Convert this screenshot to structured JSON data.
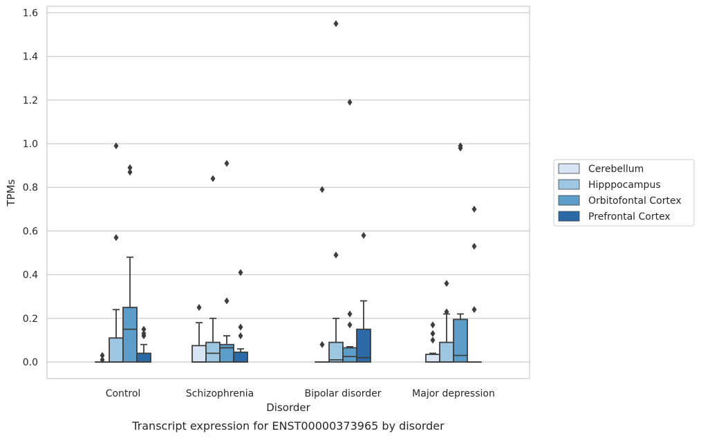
{
  "caption": "Transcript expression for ENST00000373965 by disorder",
  "chart_data": {
    "type": "box",
    "title": "",
    "xlabel": "Disorder",
    "ylabel": "TPMs",
    "ylim": [
      -0.075,
      1.64
    ],
    "yticks": [
      0.0,
      0.2,
      0.4,
      0.6,
      0.8,
      1.0,
      1.2,
      1.4,
      1.6
    ],
    "ytick_labels": [
      "0.0",
      "0.2",
      "0.4",
      "0.6",
      "0.8",
      "1.0",
      "1.2",
      "1.4",
      "1.6"
    ],
    "grid": "horizontal",
    "legend_position": "right",
    "categories": [
      "Control",
      "Schizophrenia",
      "Bipolar disorder",
      "Major depression"
    ],
    "series": [
      {
        "name": "Cerebellum",
        "color": "#d6e4f3",
        "boxes": [
          {
            "whislo": 0.0,
            "q1": 0.0,
            "med": 0.0,
            "q3": 0.0,
            "whishi": 0.0,
            "fliers": [
              0.01,
              0.03
            ]
          },
          {
            "whislo": 0.0,
            "q1": 0.0,
            "med": 0.0,
            "q3": 0.075,
            "whishi": 0.18,
            "fliers": [
              0.25
            ]
          },
          {
            "whislo": 0.0,
            "q1": 0.0,
            "med": 0.0,
            "q3": 0.0,
            "whishi": 0.0,
            "fliers": [
              0.08,
              0.79
            ]
          },
          {
            "whislo": 0.0,
            "q1": 0.0,
            "med": 0.0,
            "q3": 0.035,
            "whishi": 0.04,
            "fliers": [
              0.1,
              0.13,
              0.17
            ]
          }
        ]
      },
      {
        "name": "Hipppocampus",
        "color": "#9cc6e1",
        "boxes": [
          {
            "whislo": 0.0,
            "q1": 0.0,
            "med": 0.0,
            "q3": 0.11,
            "whishi": 0.24,
            "fliers": [
              0.57,
              0.99
            ]
          },
          {
            "whislo": 0.0,
            "q1": 0.0,
            "med": 0.04,
            "q3": 0.09,
            "whishi": 0.2,
            "fliers": [
              0.84
            ]
          },
          {
            "whislo": 0.0,
            "q1": 0.0,
            "med": 0.01,
            "q3": 0.09,
            "whishi": 0.2,
            "fliers": [
              0.49,
              1.55
            ]
          },
          {
            "whislo": 0.0,
            "q1": 0.0,
            "med": 0.0,
            "q3": 0.09,
            "whishi": 0.22,
            "fliers": [
              0.23,
              0.36
            ]
          }
        ]
      },
      {
        "name": "Orbitofontal Cortex",
        "color": "#5c9ec9",
        "boxes": [
          {
            "whislo": 0.0,
            "q1": 0.0,
            "med": 0.15,
            "q3": 0.25,
            "whishi": 0.48,
            "fliers": [
              0.87,
              0.89
            ]
          },
          {
            "whislo": 0.0,
            "q1": 0.0,
            "med": 0.065,
            "q3": 0.08,
            "whishi": 0.12,
            "fliers": [
              0.28,
              0.91
            ]
          },
          {
            "whislo": 0.0,
            "q1": 0.0,
            "med": 0.025,
            "q3": 0.065,
            "whishi": 0.07,
            "fliers": [
              0.17,
              0.22,
              1.19
            ]
          },
          {
            "whislo": 0.0,
            "q1": 0.0,
            "med": 0.03,
            "q3": 0.195,
            "whishi": 0.22,
            "fliers": [
              0.98,
              0.99
            ]
          }
        ]
      },
      {
        "name": "Prefrontal Cortex",
        "color": "#2b6aa7",
        "boxes": [
          {
            "whislo": 0.0,
            "q1": 0.0,
            "med": 0.0,
            "q3": 0.04,
            "whishi": 0.08,
            "fliers": [
              0.12,
              0.13,
              0.15
            ]
          },
          {
            "whislo": 0.0,
            "q1": 0.0,
            "med": 0.0,
            "q3": 0.045,
            "whishi": 0.06,
            "fliers": [
              0.12,
              0.16,
              0.41
            ]
          },
          {
            "whislo": 0.0,
            "q1": 0.0,
            "med": 0.02,
            "q3": 0.15,
            "whishi": 0.28,
            "fliers": [
              0.58
            ]
          },
          {
            "whislo": 0.0,
            "q1": 0.0,
            "med": 0.0,
            "q3": 0.0,
            "whishi": 0.0,
            "fliers": [
              0.24,
              0.53,
              0.7
            ]
          }
        ]
      }
    ]
  }
}
